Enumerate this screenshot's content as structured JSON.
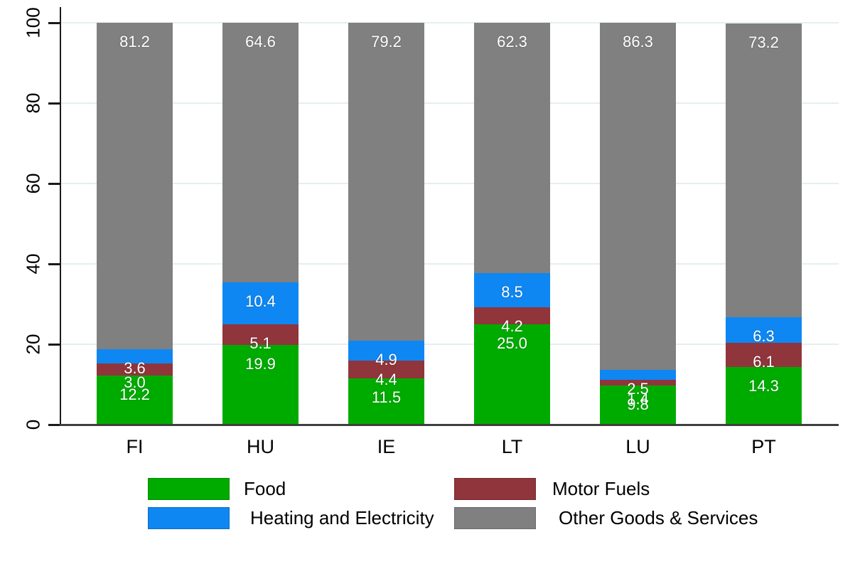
{
  "chart_data": {
    "type": "bar",
    "stacked": true,
    "title": "",
    "xlabel": "",
    "ylabel": "",
    "categories": [
      "FI",
      "HU",
      "IE",
      "LT",
      "LU",
      "PT"
    ],
    "series": [
      {
        "name": "Food",
        "color": "#00ab00",
        "values": [
          12.2,
          19.9,
          11.5,
          25.0,
          9.8,
          14.3
        ]
      },
      {
        "name": "Motor Fuels",
        "color": "#90353b",
        "values": [
          3.0,
          5.1,
          4.4,
          4.2,
          1.4,
          6.1
        ]
      },
      {
        "name": "Heating and Electricity",
        "color": "#0f87f2",
        "values": [
          3.6,
          10.4,
          4.9,
          8.5,
          2.5,
          6.3
        ]
      },
      {
        "name": "Other Goods & Services",
        "color": "#808080",
        "values": [
          81.2,
          64.6,
          79.2,
          62.3,
          86.3,
          73.2
        ]
      }
    ],
    "value_label_format": "one_decimal",
    "value_label_color": "#ffffff",
    "y_ticks": [
      0,
      20,
      40,
      60,
      80,
      100
    ],
    "ylim": [
      0,
      100
    ],
    "grid": true,
    "gridline_color": "#e5eef1",
    "axis_color": "#1a1a1a",
    "legend_position": "bottom",
    "legend_rows": [
      [
        "Food",
        "Motor Fuels"
      ],
      [
        "Heating and Electricity",
        "Other Goods & Services"
      ]
    ]
  }
}
